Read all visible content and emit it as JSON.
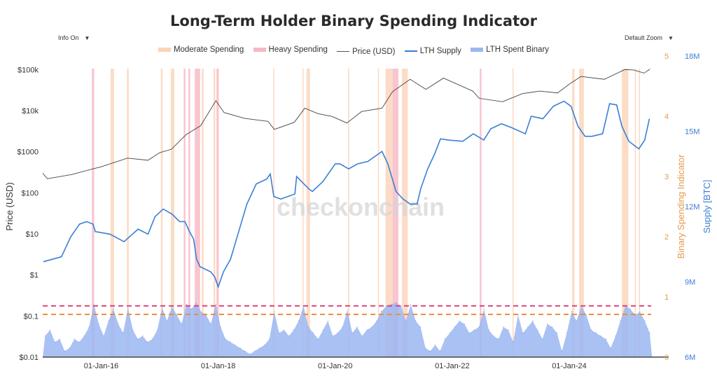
{
  "chart_data": {
    "type": "line",
    "title": "Long-Term Holder Binary Spending Indicator",
    "controls": {
      "info": "Info On",
      "zoom": "Default Zoom",
      "arrow": "▼"
    },
    "watermark": "checkonchain",
    "legend": [
      {
        "name": "Moderate Spending",
        "color": "#fbd3b8"
      },
      {
        "name": "Heavy Spending",
        "color": "#f7b7c3"
      },
      {
        "name": "Price (USD)",
        "color": "#555555"
      },
      {
        "name": "LTH Supply",
        "color": "#3a7fd5"
      },
      {
        "name": "LTH Spent Binary",
        "color": "#9bb6f2"
      }
    ],
    "legend_placement": "top-center",
    "x_axis": {
      "ticks": [
        "01-Jan-16",
        "01-Jan-18",
        "01-Jan-20",
        "01-Jan-22",
        "01-Jan-24"
      ],
      "tick_years": [
        2016,
        2018,
        2020,
        2022,
        2024
      ],
      "range": [
        2015.0,
        2025.7
      ]
    },
    "y_left": {
      "label": "Price (USD)",
      "scale": "log",
      "ticks": [
        "$0.01",
        "$0.1",
        "$1",
        "$10",
        "$100",
        "$1000",
        "$10k",
        "$100k"
      ],
      "tick_values": [
        0.01,
        0.1,
        1,
        10,
        100,
        1000,
        10000,
        100000
      ],
      "range": [
        0.01,
        214000
      ]
    },
    "y_right1": {
      "label": "Binary Spending Indicator",
      "color": "#e59a4c",
      "ticks": [
        "0",
        "1",
        "2",
        "3",
        "4",
        "5"
      ],
      "tick_values": [
        0,
        1,
        2,
        3,
        4,
        5
      ],
      "range": [
        0,
        5
      ]
    },
    "y_right2": {
      "label": "Supply [BTC]",
      "color": "#3a7fd5",
      "ticks": [
        "6M",
        "9M",
        "12M",
        "15M",
        "18M"
      ],
      "tick_values": [
        6,
        9,
        12,
        15,
        18
      ],
      "range": [
        6,
        18
      ]
    },
    "thresholds": [
      {
        "name": "heavy-threshold",
        "value": 0.85,
        "color": "#e0457b"
      },
      {
        "name": "moderate-threshold",
        "value": 0.71,
        "color": "#e8923a"
      }
    ],
    "price": {
      "x": [
        2015.0,
        2015.08,
        2015.5,
        2015.85,
        2016.0,
        2016.45,
        2016.8,
        2017.0,
        2017.2,
        2017.45,
        2017.7,
        2017.96,
        2018.1,
        2018.45,
        2018.85,
        2018.96,
        2019.3,
        2019.48,
        2019.7,
        2019.95,
        2020.2,
        2020.45,
        2020.8,
        2020.98,
        2021.28,
        2021.55,
        2021.85,
        2022.35,
        2022.46,
        2022.86,
        2023.2,
        2023.5,
        2023.8,
        2024.0,
        2024.2,
        2024.6,
        2024.95,
        2025.1,
        2025.28,
        2025.38
      ],
      "y": [
        300,
        220,
        280,
        380,
        430,
        700,
        620,
        950,
        1150,
        2600,
        4300,
        17500,
        9000,
        6500,
        5500,
        3500,
        5200,
        11500,
        8500,
        7200,
        5000,
        9500,
        11500,
        29000,
        58000,
        33000,
        62000,
        30000,
        20000,
        16500,
        26000,
        30000,
        27000,
        44000,
        68000,
        58000,
        100000,
        98000,
        82000,
        103000
      ]
    },
    "lth_supply": {
      "x": [
        2015.01,
        2015.32,
        2015.48,
        2015.63,
        2015.75,
        2015.86,
        2015.9,
        2016.15,
        2016.39,
        2016.63,
        2016.8,
        2016.92,
        2017.06,
        2017.21,
        2017.34,
        2017.43,
        2017.51,
        2017.58,
        2017.63,
        2017.69,
        2017.87,
        2017.94,
        2018.0,
        2018.09,
        2018.21,
        2018.35,
        2018.49,
        2018.65,
        2018.83,
        2018.89,
        2018.95,
        2019.07,
        2019.31,
        2019.34,
        2019.55,
        2019.61,
        2019.79,
        2020.0,
        2020.08,
        2020.23,
        2020.38,
        2020.56,
        2020.74,
        2020.8,
        2020.9,
        2021.04,
        2021.16,
        2021.28,
        2021.4,
        2021.46,
        2021.58,
        2021.7,
        2021.8,
        2021.94,
        2022.18,
        2022.36,
        2022.54,
        2022.66,
        2022.84,
        2023.01,
        2023.25,
        2023.35,
        2023.55,
        2023.73,
        2023.91,
        2024.03,
        2024.15,
        2024.27,
        2024.39,
        2024.57,
        2024.69,
        2024.81,
        2024.9,
        2025.02,
        2025.19,
        2025.29,
        2025.37
      ],
      "y": [
        9.8,
        10.0,
        10.8,
        11.3,
        11.4,
        11.3,
        11.0,
        10.9,
        10.6,
        11.1,
        10.9,
        11.6,
        11.9,
        11.7,
        11.4,
        11.4,
        11.0,
        10.7,
        9.9,
        9.6,
        9.4,
        9.2,
        8.8,
        9.4,
        9.9,
        11.0,
        12.1,
        12.9,
        13.1,
        13.3,
        12.4,
        12.3,
        12.5,
        13.2,
        12.7,
        12.6,
        13.0,
        13.7,
        13.7,
        13.5,
        13.7,
        13.8,
        14.1,
        14.2,
        13.7,
        12.6,
        12.3,
        12.1,
        12.1,
        12.7,
        13.5,
        14.1,
        14.7,
        14.65,
        14.6,
        14.9,
        14.65,
        15.1,
        15.3,
        15.15,
        14.9,
        15.6,
        15.5,
        16.0,
        16.2,
        16.0,
        15.2,
        14.8,
        14.8,
        14.9,
        16.1,
        16.05,
        15.2,
        14.6,
        14.3,
        14.65,
        15.5
      ]
    },
    "lth_spent_binary": {
      "start": "2015-01",
      "interval": "monthly",
      "values": [
        0.35,
        0.45,
        0.25,
        0.3,
        0.1,
        0.15,
        0.3,
        0.25,
        0.35,
        0.5,
        0.88,
        0.55,
        0.35,
        0.6,
        0.8,
        0.55,
        0.4,
        0.82,
        0.45,
        0.3,
        0.35,
        0.25,
        0.3,
        0.45,
        0.82,
        0.6,
        0.84,
        0.7,
        0.55,
        0.88,
        0.8,
        0.9,
        0.75,
        0.7,
        0.55,
        0.88,
        0.5,
        0.3,
        0.25,
        0.2,
        0.15,
        0.1,
        0.05,
        0.1,
        0.15,
        0.2,
        0.3,
        0.75,
        0.4,
        0.45,
        0.35,
        0.45,
        0.6,
        0.85,
        0.5,
        0.4,
        0.3,
        0.45,
        0.6,
        0.35,
        0.4,
        0.5,
        0.78,
        0.4,
        0.5,
        0.35,
        0.45,
        0.5,
        0.6,
        0.76,
        0.85,
        0.88,
        0.9,
        0.85,
        0.6,
        0.87,
        0.6,
        0.5,
        0.15,
        0.1,
        0.2,
        0.1,
        0.3,
        0.4,
        0.5,
        0.6,
        0.55,
        0.4,
        0.45,
        0.5,
        0.8,
        0.45,
        0.35,
        0.3,
        0.5,
        0.45,
        0.25,
        0.7,
        0.4,
        0.5,
        0.6,
        0.45,
        0.3,
        0.55,
        0.5,
        0.4,
        0.1,
        0.4,
        0.76,
        0.6,
        0.85,
        0.7,
        0.45,
        0.4,
        0.35,
        0.3,
        0.15,
        0.35,
        0.6,
        0.85,
        0.8,
        0.7,
        0.75,
        0.6,
        0.4
      ]
    },
    "spending_periods": [
      {
        "type": "heavy",
        "from": 2015.84,
        "to": 2015.88
      },
      {
        "type": "moderate",
        "from": 2016.16,
        "to": 2016.22
      },
      {
        "type": "moderate",
        "from": 2016.44,
        "to": 2016.47
      },
      {
        "type": "moderate",
        "from": 2017.02,
        "to": 2017.05
      },
      {
        "type": "moderate",
        "from": 2017.19,
        "to": 2017.25
      },
      {
        "type": "heavy",
        "from": 2017.41,
        "to": 2017.44
      },
      {
        "type": "heavy",
        "from": 2017.49,
        "to": 2017.52
      },
      {
        "type": "heavy",
        "from": 2017.6,
        "to": 2017.69
      },
      {
        "type": "moderate",
        "from": 2017.72,
        "to": 2017.75
      },
      {
        "type": "moderate",
        "from": 2017.92,
        "to": 2017.95
      },
      {
        "type": "heavy",
        "from": 2017.97,
        "to": 2018.01
      },
      {
        "type": "moderate",
        "from": 2018.94,
        "to": 2018.96
      },
      {
        "type": "moderate",
        "from": 2019.44,
        "to": 2019.46
      },
      {
        "type": "moderate",
        "from": 2019.51,
        "to": 2019.57
      },
      {
        "type": "moderate",
        "from": 2020.22,
        "to": 2020.24
      },
      {
        "type": "moderate",
        "from": 2020.73,
        "to": 2020.75
      },
      {
        "type": "moderate",
        "from": 2020.86,
        "to": 2020.98
      },
      {
        "type": "heavy",
        "from": 2020.98,
        "to": 2021.08
      },
      {
        "type": "moderate",
        "from": 2021.14,
        "to": 2021.24
      },
      {
        "type": "heavy",
        "from": 2022.47,
        "to": 2022.5
      },
      {
        "type": "moderate",
        "from": 2023.03,
        "to": 2023.05
      },
      {
        "type": "moderate",
        "from": 2024.05,
        "to": 2024.09
      },
      {
        "type": "moderate",
        "from": 2024.17,
        "to": 2024.25
      },
      {
        "type": "moderate",
        "from": 2024.9,
        "to": 2025.01
      },
      {
        "type": "moderate",
        "from": 2025.12,
        "to": 2025.14
      },
      {
        "type": "moderate",
        "from": 2025.19,
        "to": 2025.21
      }
    ],
    "grid": false
  }
}
